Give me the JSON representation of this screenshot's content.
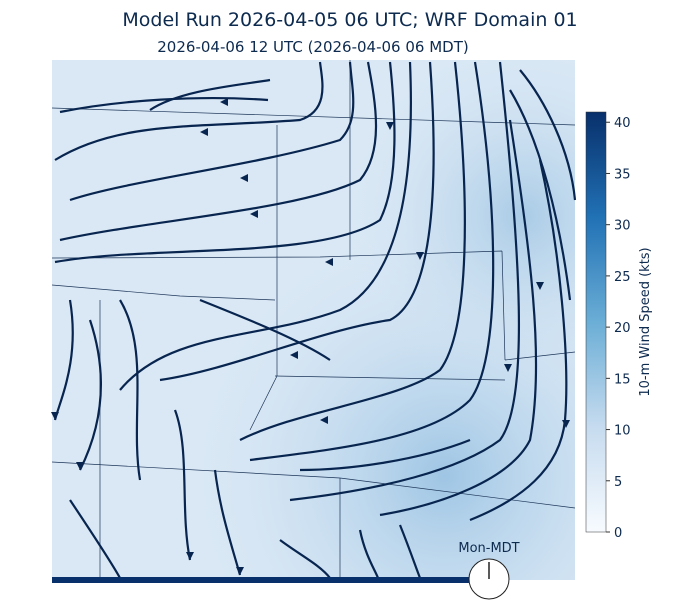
{
  "title": "Model Run 2026-04-05 06 UTC; WRF Domain 01",
  "subtitle": "2026-04-06 12 UTC  (2026-04-06 06 MDT)",
  "colorbar": {
    "label": "10-m Wind Speed (kts)",
    "lim": [
      0,
      41
    ],
    "ticks": [
      0,
      5,
      10,
      15,
      20,
      25,
      30,
      35,
      40
    ]
  },
  "clock_label": "Mon-MDT"
}
